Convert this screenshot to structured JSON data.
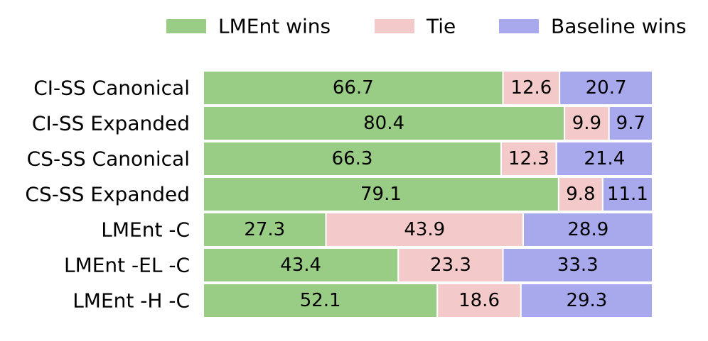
{
  "chart_data": {
    "type": "bar",
    "orientation": "horizontal",
    "stacked": true,
    "categories": [
      "CI-SS Canonical",
      "CI-SS Expanded",
      "CS-SS Canonical",
      "CS-SS Expanded",
      "LMEnt -C",
      "LMEnt -EL -C",
      "LMEnt -H -C"
    ],
    "series": [
      {
        "name": "LMEnt wins",
        "color": "#99cc84",
        "values": [
          66.7,
          80.4,
          66.3,
          79.1,
          27.3,
          43.4,
          52.1
        ]
      },
      {
        "name": "Tie",
        "color": "#f4c9c9",
        "values": [
          12.6,
          9.9,
          12.3,
          9.8,
          43.9,
          23.3,
          18.6
        ]
      },
      {
        "name": "Baseline wins",
        "color": "#a8a8ec",
        "values": [
          20.7,
          9.7,
          21.4,
          11.1,
          28.9,
          33.3,
          29.3
        ]
      }
    ],
    "xlim": [
      0,
      100
    ],
    "grid": false,
    "legend": "top",
    "value_labels": true
  }
}
